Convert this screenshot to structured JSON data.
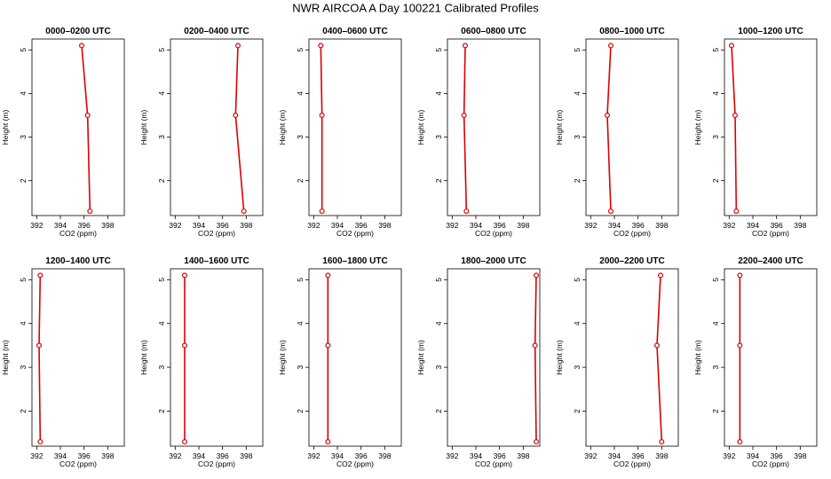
{
  "page_title": "NWR AIRCOA A  Day 100221  Calibrated Profiles",
  "colors": {
    "series": "#dd0000",
    "axis": "#000000",
    "background": "#ffffff"
  },
  "chart_data": {
    "type": "line",
    "layout": "small-multiples 2 rows x 6 columns",
    "xlabel": "CO2 (ppm)",
    "ylabel": "Height (m)",
    "xlim": [
      391.6,
      399.4
    ],
    "ylim": [
      1.2,
      5.25
    ],
    "xticks": [
      392,
      394,
      396,
      398
    ],
    "yticks": [
      2,
      3,
      4,
      5
    ],
    "heights": [
      5.1,
      3.5,
      1.3
    ],
    "panels": [
      {
        "title": "0000–0200 UTC",
        "co2": [
          395.8,
          396.3,
          396.5
        ]
      },
      {
        "title": "0200–0400 UTC",
        "co2": [
          397.3,
          397.1,
          397.8
        ]
      },
      {
        "title": "0400–0600 UTC",
        "co2": [
          392.6,
          392.7,
          392.7
        ]
      },
      {
        "title": "0600–0800 UTC",
        "co2": [
          393.1,
          393.0,
          393.2
        ]
      },
      {
        "title": "0800–1000 UTC",
        "co2": [
          393.7,
          393.4,
          393.7
        ]
      },
      {
        "title": "1000–1200 UTC",
        "co2": [
          392.2,
          392.5,
          392.6
        ]
      },
      {
        "title": "1200–1400 UTC",
        "co2": [
          392.3,
          392.2,
          392.3
        ]
      },
      {
        "title": "1400–1600 UTC",
        "co2": [
          392.8,
          392.8,
          392.8
        ]
      },
      {
        "title": "1600–1800 UTC",
        "co2": [
          393.2,
          393.2,
          393.2
        ]
      },
      {
        "title": "1800–2000 UTC",
        "co2": [
          399.1,
          399.0,
          399.1
        ]
      },
      {
        "title": "2000–2200 UTC",
        "co2": [
          397.9,
          397.6,
          398.0
        ]
      },
      {
        "title": "2200–2400 UTC",
        "co2": [
          392.9,
          392.9,
          392.9
        ]
      }
    ]
  }
}
